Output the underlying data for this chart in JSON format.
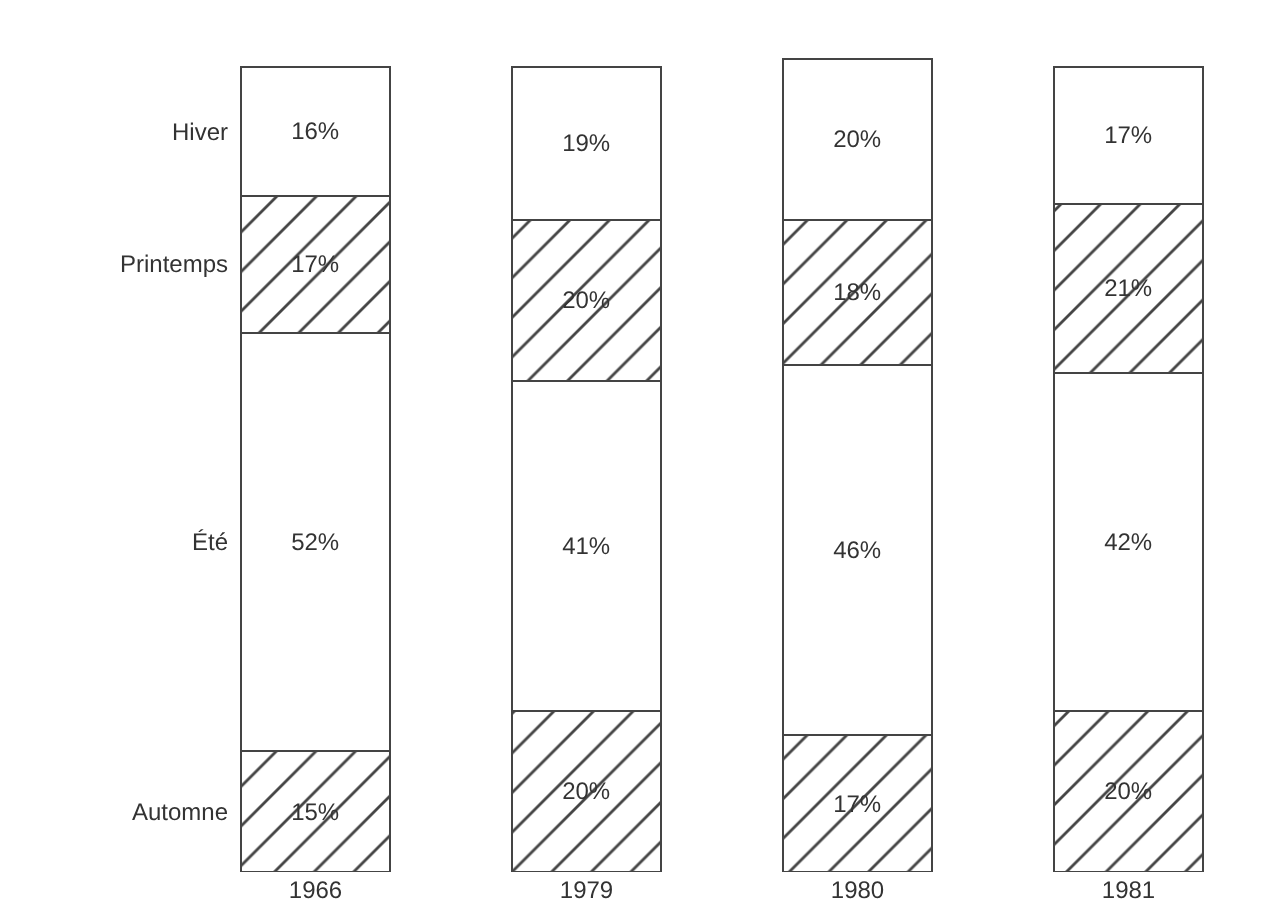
{
  "chart_data": {
    "type": "bar",
    "stacked": true,
    "legend": false,
    "categories": [
      "1966",
      "1979",
      "1980",
      "1981"
    ],
    "series": [
      {
        "name": "Automne",
        "color": "#444444",
        "values": [
          15,
          20,
          17,
          20
        ],
        "value_labels": [
          "15%",
          "20%",
          "17%",
          "20%"
        ]
      },
      {
        "name": "Été",
        "color": "#ffffff",
        "values": [
          52,
          41,
          46,
          42
        ],
        "value_labels": [
          "52%",
          "41%",
          "46%",
          "42%"
        ]
      },
      {
        "name": "Printemps",
        "color": "#444444",
        "values": [
          17,
          20,
          18,
          21
        ],
        "value_labels": [
          "17%",
          "20%",
          "18%",
          "21%"
        ]
      },
      {
        "name": "Hiver",
        "color": "#ffffff",
        "values": [
          16,
          19,
          20,
          17
        ],
        "value_labels": [
          "16%",
          "19%",
          "20%",
          "17%"
        ]
      }
    ]
  }
}
